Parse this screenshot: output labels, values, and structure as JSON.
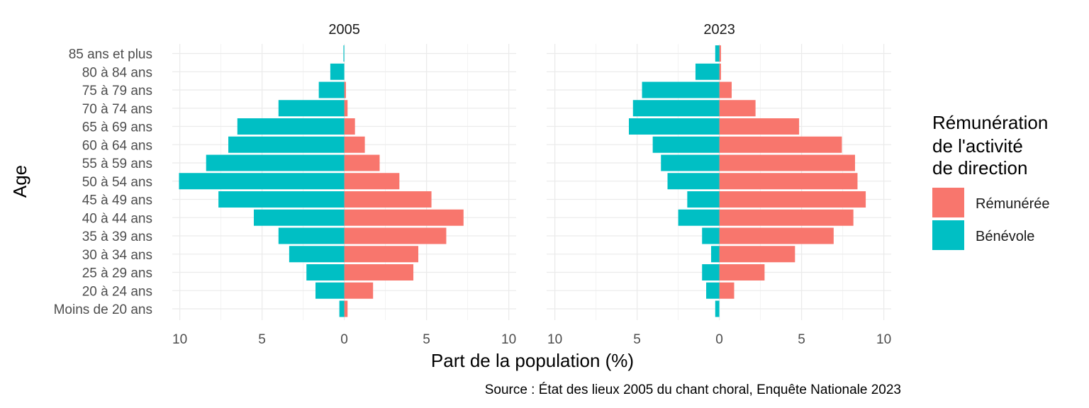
{
  "chart_data": {
    "type": "bar",
    "orientation": "horizontal-pyramid",
    "ylabel": "Age",
    "xlabel": "Part de la population (%)",
    "caption": "Source : État des lieux 2005 du chant choral, Enquête Nationale 2023",
    "legend": {
      "title_lines": [
        "Rémunération",
        "de l'activité",
        "de direction"
      ],
      "placement": "right"
    },
    "xlim": [
      -10.5,
      10.5
    ],
    "x_ticks": [
      -10,
      -5,
      0,
      5,
      10
    ],
    "x_tick_labels": [
      "10",
      "5",
      "0",
      "5",
      "10"
    ],
    "categories": [
      "85 ans et plus",
      "80 à 84 ans",
      "75 à 79 ans",
      "70 à 74 ans",
      "65 à 69 ans",
      "60 à 64 ans",
      "55 à 59 ans",
      "50 à 54 ans",
      "45 à 49 ans",
      "40 à 44 ans",
      "35 à 39 ans",
      "30 à 34 ans",
      "25 à 29 ans",
      "20 à 24 ans",
      "Moins de 20 ans"
    ],
    "series": [
      {
        "name": "Rémunérée",
        "color": "#F8766D",
        "side": "right"
      },
      {
        "name": "Bénévole",
        "color": "#00BFC4",
        "side": "left"
      }
    ],
    "facets": [
      {
        "title": "2005",
        "Rémunérée": [
          0,
          0,
          0.1,
          0.2,
          0.65,
          1.25,
          2.15,
          3.35,
          5.3,
          7.25,
          6.2,
          4.5,
          4.2,
          1.75,
          0.2
        ],
        "Bénévole": [
          0.05,
          0.85,
          1.55,
          4.0,
          6.5,
          7.05,
          8.4,
          10.05,
          7.65,
          5.5,
          4.0,
          3.35,
          2.3,
          1.75,
          0.3
        ]
      },
      {
        "title": "2023",
        "Rémunérée": [
          0.1,
          0.1,
          0.75,
          2.2,
          4.85,
          7.45,
          8.25,
          8.4,
          8.9,
          8.15,
          6.95,
          4.6,
          2.75,
          0.9,
          0
        ],
        "Bénévole": [
          0.25,
          1.45,
          4.7,
          5.25,
          5.5,
          4.05,
          3.55,
          3.15,
          1.95,
          2.5,
          1.05,
          0.5,
          1.05,
          0.8,
          0.25
        ]
      }
    ]
  }
}
